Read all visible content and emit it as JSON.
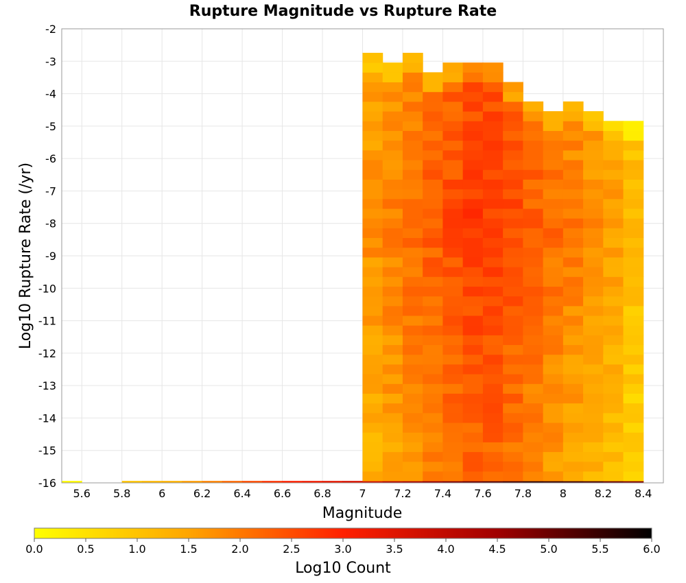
{
  "chart_data": {
    "type": "heatmap",
    "title": "Rupture Magnitude vs Rupture Rate",
    "xlabel": "Magnitude",
    "ylabel": "Log10 Rupture Rate (/yr)",
    "xlim": [
      5.5,
      8.5
    ],
    "ylim": [
      -16,
      -2
    ],
    "x_bin_width": 0.1,
    "y_bin_height": 0.3,
    "x_ticks": [
      "5.6",
      "5.8",
      "6",
      "6.2",
      "6.4",
      "6.6",
      "6.8",
      "7",
      "7.2",
      "7.4",
      "7.6",
      "7.8",
      "8",
      "8.2",
      "8.4"
    ],
    "y_ticks": [
      "-2",
      "-3",
      "-4",
      "-5",
      "-6",
      "-7",
      "-8",
      "-9",
      "-10",
      "-11",
      "-12",
      "-13",
      "-14",
      "-15",
      "-16"
    ],
    "colorbar": {
      "label": "Log10 Count",
      "range": [
        0,
        6
      ],
      "ticks": [
        "0.0",
        "0.5",
        "1.0",
        "1.5",
        "2.0",
        "2.5",
        "3.0",
        "3.5",
        "4.0",
        "4.5",
        "5.0",
        "5.5",
        "6.0"
      ],
      "colors": [
        "#ffff00",
        "#ffa500",
        "#ff2000",
        "#a00000",
        "#000000"
      ]
    },
    "columns": [
      {
        "m": 5.55,
        "top": -16.0
      },
      {
        "m": 5.85,
        "top": -16.0
      },
      {
        "m": 5.95,
        "top": -16.0
      },
      {
        "m": 6.05,
        "top": -16.0
      },
      {
        "m": 6.15,
        "top": -16.0
      },
      {
        "m": 6.25,
        "top": -16.0
      },
      {
        "m": 6.35,
        "top": -16.0
      },
      {
        "m": 6.45,
        "top": -16.0
      },
      {
        "m": 6.55,
        "top": -16.0
      },
      {
        "m": 6.65,
        "top": -16.0
      },
      {
        "m": 6.75,
        "top": -16.0
      },
      {
        "m": 6.85,
        "top": -16.0
      },
      {
        "m": 6.95,
        "top": -16.0
      },
      {
        "m": 7.05,
        "top": -2.7
      },
      {
        "m": 7.15,
        "top": -3.0
      },
      {
        "m": 7.25,
        "top": -2.7
      },
      {
        "m": 7.35,
        "top": -3.3
      },
      {
        "m": 7.45,
        "top": -3.0
      },
      {
        "m": 7.55,
        "top": -3.0
      },
      {
        "m": 7.65,
        "top": -3.0
      },
      {
        "m": 7.75,
        "top": -3.6
      },
      {
        "m": 7.85,
        "top": -4.2
      },
      {
        "m": 7.95,
        "top": -4.5
      },
      {
        "m": 8.05,
        "top": -4.2
      },
      {
        "m": 8.15,
        "top": -4.5
      },
      {
        "m": 8.25,
        "top": -4.8
      },
      {
        "m": 8.35,
        "top": -4.8
      }
    ],
    "bottom_row": [
      0.1,
      1.0,
      1.2,
      1.3,
      1.6,
      1.9,
      2.2,
      2.5,
      2.8,
      3.0,
      3.2,
      3.4,
      3.6,
      3.8,
      4.2,
      4.4,
      4.6,
      4.8,
      5.0,
      5.2,
      5.4,
      5.6,
      5.5,
      5.4,
      5.3,
      5.0,
      4.8
    ]
  }
}
